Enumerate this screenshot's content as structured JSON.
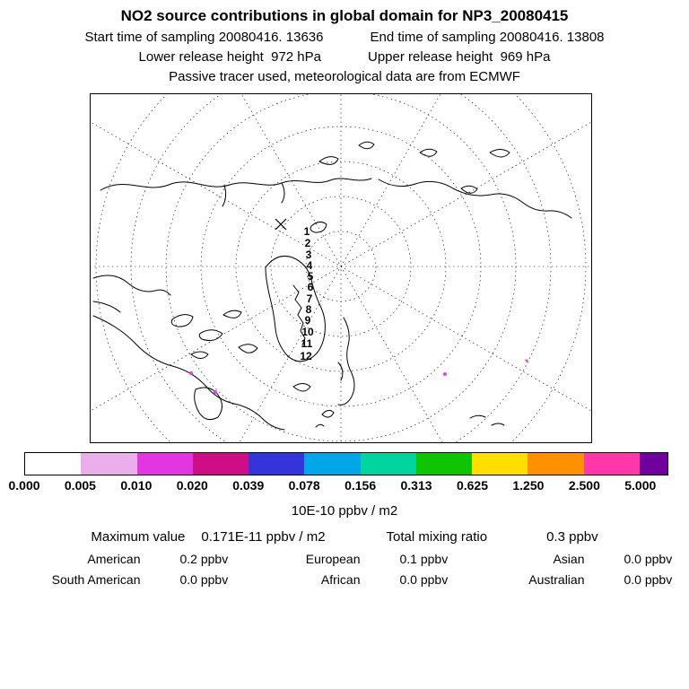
{
  "header": {
    "title": "NO2 source contributions in global domain for NP3_20080415",
    "start_time": "Start time of sampling 20080416. 13636",
    "end_time": "End time of sampling 20080416. 13808",
    "lower_release": "Lower release height  972 hPa",
    "upper_release": "Upper release height  969 hPa",
    "tracer_note": "Passive tracer used, meteorological data are from ECMWF"
  },
  "map": {
    "markers": [
      "1",
      "2",
      "3",
      "4",
      "5",
      "6",
      "7",
      "8",
      "9",
      "10",
      "11",
      "12"
    ]
  },
  "colorbar": {
    "ticks": [
      "0.000",
      "0.005",
      "0.010",
      "0.020",
      "0.039",
      "0.078",
      "0.156",
      "0.313",
      "0.625",
      "1.250",
      "2.500",
      "5.000"
    ],
    "colors": [
      "#ffffff",
      "#eaaeea",
      "#e136e1",
      "#cd0e86",
      "#3434da",
      "#00a6e8",
      "#00d5a0",
      "#0fc400",
      "#ffde00",
      "#ff9000",
      "#ff37a8",
      "#70009e"
    ],
    "units": "10E-10 ppbv / m2"
  },
  "stats": {
    "max_label": "Maximum value",
    "max_value": "0.171E-11 ppbv / m2",
    "total_label": "Total mixing ratio",
    "total_value": "0.3 ppbv",
    "regions": [
      {
        "name": "American",
        "value": "0.2 ppbv"
      },
      {
        "name": "European",
        "value": "0.1 ppbv"
      },
      {
        "name": "Asian",
        "value": "0.0 ppbv"
      },
      {
        "name": "South American",
        "value": "0.0 ppbv"
      },
      {
        "name": "African",
        "value": "0.0 ppbv"
      },
      {
        "name": "Australian",
        "value": "0.0 ppbv"
      }
    ]
  },
  "chart_data": {
    "type": "heatmap",
    "title": "NO2 source contributions in global domain for NP3_20080415",
    "subtitle_lines": [
      "Start time of sampling 20080416. 13636",
      "End time of sampling 20080416. 13808",
      "Lower release height 972 hPa",
      "Upper release height 969 hPa",
      "Passive tracer used, meteorological data are from ECMWF"
    ],
    "projection": "north-polar-stereographic",
    "colorbar_levels": [
      0,
      0.005,
      0.01,
      0.02,
      0.039,
      0.078,
      0.156,
      0.313,
      0.625,
      1.25,
      2.5,
      5.0
    ],
    "colorbar_units": "10E-10 ppbv / m2",
    "trajectory_point_labels": [
      1,
      2,
      3,
      4,
      5,
      6,
      7,
      8,
      9,
      10,
      11,
      12
    ],
    "maximum_value": "0.171E-11 ppbv / m2",
    "total_mixing_ratio_ppbv": 0.3,
    "source_contributions_ppbv": {
      "American": 0.2,
      "European": 0.1,
      "Asian": 0.0,
      "South American": 0.0,
      "African": 0.0,
      "Australian": 0.0
    }
  }
}
